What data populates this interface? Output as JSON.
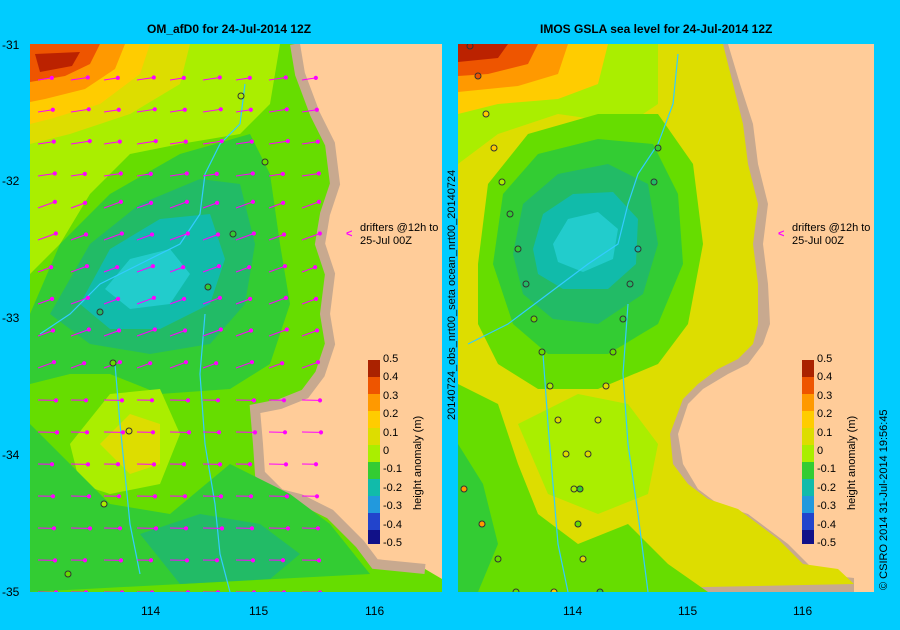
{
  "left_panel": {
    "title": "OM_afD0 for 24-Jul-2014 12Z",
    "annotation_lines": [
      "drifters @12h to",
      "25-Jul 00Z"
    ],
    "colorbar": {
      "label": "height anomaly (m)",
      "ticks": [
        "0.5",
        "0.4",
        "0.3",
        "0.2",
        "0.1",
        "0",
        "-0.1",
        "-0.2",
        "-0.3",
        "-0.4",
        "-0.5"
      ]
    }
  },
  "right_panel": {
    "title": "IMOS GSLA sea level  for 24-Jul-2014 12Z",
    "side_label": "20140724_obs_nrt00_seta  ocean_nrt00_20140724",
    "annotation_lines": [
      "drifters @12h to",
      "25-Jul 00Z"
    ],
    "colorbar": {
      "label": "height anomaly (m)",
      "ticks": [
        "0.5",
        "0.4",
        "0.3",
        "0.2",
        "0.1",
        "0",
        "-0.1",
        "-0.2",
        "-0.3",
        "-0.4",
        "-0.5"
      ]
    }
  },
  "axes": {
    "y_ticks": [
      "-31",
      "-32",
      "-33",
      "-34",
      "-35"
    ],
    "x_ticks": [
      "114",
      "115",
      "116"
    ]
  },
  "credit": "© CSIRO 2014   31-Jul-2014 19:56:45",
  "colors": {
    "background": "#00ccff",
    "land": "#ffcc99",
    "shelf": "#c8a98f",
    "river": "#33ccff",
    "arrow": "#ff00ff"
  }
}
